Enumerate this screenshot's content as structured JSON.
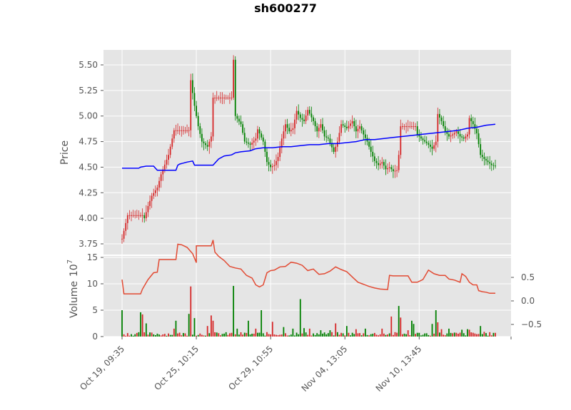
{
  "chart_data": [
    {
      "type": "candlestick",
      "title": "sh600277",
      "ylabel": "Price",
      "ylim": [
        3.7,
        5.58
      ],
      "yticks": [
        "3.75",
        "4.00",
        "4.25",
        "4.50",
        "4.75",
        "5.00",
        "5.25",
        "5.50"
      ],
      "ytick_values": [
        3.75,
        4.0,
        4.25,
        4.5,
        4.75,
        5.0,
        5.25,
        5.5
      ],
      "grid": true,
      "colors": {
        "up": "#d62728",
        "down": "#008000",
        "moving_average": "#0000ff",
        "background": "#e5e5e5",
        "grid": "#ffffff"
      },
      "price_path": [
        [
          0,
          3.8
        ],
        [
          3,
          4.03
        ],
        [
          11,
          4.03
        ],
        [
          12,
          4.0
        ],
        [
          14,
          4.12
        ],
        [
          16,
          4.22
        ],
        [
          19,
          4.3
        ],
        [
          21,
          4.43
        ],
        [
          25,
          4.62
        ],
        [
          28,
          4.86
        ],
        [
          36,
          4.86
        ],
        [
          37,
          5.35
        ],
        [
          39,
          5.1
        ],
        [
          41,
          4.9
        ],
        [
          43,
          4.75
        ],
        [
          46,
          4.7
        ],
        [
          48,
          4.8
        ],
        [
          49,
          5.18
        ],
        [
          59,
          5.18
        ],
        [
          60,
          5.55
        ],
        [
          61,
          5.0
        ],
        [
          64,
          4.92
        ],
        [
          66,
          4.75
        ],
        [
          69,
          4.72
        ],
        [
          72,
          4.78
        ],
        [
          73,
          4.87
        ],
        [
          76,
          4.75
        ],
        [
          78,
          4.55
        ],
        [
          80,
          4.5
        ],
        [
          82,
          4.52
        ],
        [
          84,
          4.6
        ],
        [
          86,
          4.78
        ],
        [
          88,
          4.92
        ],
        [
          90,
          4.85
        ],
        [
          92,
          4.88
        ],
        [
          94,
          5.05
        ],
        [
          96,
          4.98
        ],
        [
          98,
          4.95
        ],
        [
          100,
          5.06
        ],
        [
          103,
          4.95
        ],
        [
          105,
          4.85
        ],
        [
          107,
          4.92
        ],
        [
          109,
          4.8
        ],
        [
          111,
          4.78
        ],
        [
          114,
          4.65
        ],
        [
          116,
          4.75
        ],
        [
          118,
          4.92
        ],
        [
          121,
          4.88
        ],
        [
          124,
          4.95
        ],
        [
          126,
          4.85
        ],
        [
          128,
          4.9
        ],
        [
          130,
          4.82
        ],
        [
          132,
          4.75
        ],
        [
          134,
          4.65
        ],
        [
          136,
          4.56
        ],
        [
          138,
          4.52
        ],
        [
          140,
          4.55
        ],
        [
          142,
          4.48
        ],
        [
          144,
          4.5
        ],
        [
          146,
          4.46
        ],
        [
          148,
          4.47
        ],
        [
          149,
          4.62
        ],
        [
          150,
          4.9
        ],
        [
          158,
          4.9
        ],
        [
          159,
          4.82
        ],
        [
          161,
          4.78
        ],
        [
          163,
          4.75
        ],
        [
          165,
          4.72
        ],
        [
          167,
          4.68
        ],
        [
          169,
          4.75
        ],
        [
          170,
          5.02
        ],
        [
          172,
          4.95
        ],
        [
          174,
          4.85
        ],
        [
          176,
          4.8
        ],
        [
          178,
          4.82
        ],
        [
          180,
          4.85
        ],
        [
          182,
          4.8
        ],
        [
          184,
          4.78
        ],
        [
          186,
          4.82
        ],
        [
          187,
          4.98
        ],
        [
          189,
          4.92
        ],
        [
          191,
          4.83
        ],
        [
          193,
          4.62
        ],
        [
          195,
          4.58
        ],
        [
          197,
          4.55
        ],
        [
          199,
          4.52
        ],
        [
          201,
          4.51
        ]
      ],
      "moving_average": [
        [
          0,
          4.49
        ],
        [
          9,
          4.49
        ],
        [
          10,
          4.5
        ],
        [
          13,
          4.51
        ],
        [
          17,
          4.51
        ],
        [
          19,
          4.47
        ],
        [
          29,
          4.47
        ],
        [
          30,
          4.52
        ],
        [
          31,
          4.53
        ],
        [
          35,
          4.55
        ],
        [
          38,
          4.56
        ],
        [
          39,
          4.52
        ],
        [
          49,
          4.52
        ],
        [
          52,
          4.58
        ],
        [
          55,
          4.61
        ],
        [
          59,
          4.62
        ],
        [
          61,
          4.64
        ],
        [
          64,
          4.65
        ],
        [
          69,
          4.66
        ],
        [
          72,
          4.68
        ],
        [
          76,
          4.69
        ],
        [
          81,
          4.69
        ],
        [
          86,
          4.7
        ],
        [
          91,
          4.7
        ],
        [
          96,
          4.71
        ],
        [
          101,
          4.72
        ],
        [
          106,
          4.72
        ],
        [
          111,
          4.73
        ],
        [
          116,
          4.73
        ],
        [
          121,
          4.74
        ],
        [
          126,
          4.75
        ],
        [
          131,
          4.77
        ],
        [
          136,
          4.77
        ],
        [
          141,
          4.78
        ],
        [
          146,
          4.79
        ],
        [
          151,
          4.8
        ],
        [
          156,
          4.81
        ],
        [
          161,
          4.82
        ],
        [
          166,
          4.83
        ],
        [
          171,
          4.84
        ],
        [
          176,
          4.85
        ],
        [
          181,
          4.86
        ],
        [
          186,
          4.88
        ],
        [
          191,
          4.89
        ],
        [
          196,
          4.91
        ],
        [
          201,
          4.92
        ]
      ]
    },
    {
      "type": "bar",
      "ylabel": "Volume",
      "ylabel_exponent": "7",
      "ylim": [
        0,
        15
      ],
      "yticks": [
        "0",
        "5",
        "10",
        "15"
      ],
      "ytick_values": [
        0,
        5,
        10,
        15
      ],
      "secondary_yticks": [
        "0.5",
        "0.0",
        "−0.5"
      ],
      "secondary_ytick_values": [
        0.5,
        0.0,
        -0.5
      ],
      "xticks": [
        "Oct 19, 09:35",
        "Oct 25, 10:15",
        "Oct 29, 10:55",
        "Nov 04, 13:05",
        "Nov 10, 13:45"
      ],
      "xtick_positions": [
        0,
        40,
        80,
        120,
        160
      ],
      "volume_spikes": [
        [
          0,
          5.0,
          "down"
        ],
        [
          10,
          4.6,
          "down"
        ],
        [
          11,
          4.2,
          "up"
        ],
        [
          13,
          2.5,
          "down"
        ],
        [
          28,
          1.5,
          "up"
        ],
        [
          29,
          3.0,
          "down"
        ],
        [
          36,
          4.3,
          "down"
        ],
        [
          37,
          9.5,
          "up"
        ],
        [
          39,
          3.5,
          "down"
        ],
        [
          46,
          2.0,
          "up"
        ],
        [
          48,
          4.0,
          "up"
        ],
        [
          49,
          3.0,
          "up"
        ],
        [
          60,
          9.6,
          "down"
        ],
        [
          62,
          1.5,
          "down"
        ],
        [
          68,
          3.0,
          "down"
        ],
        [
          72,
          1.5,
          "up"
        ],
        [
          75,
          5.0,
          "down"
        ],
        [
          81,
          2.8,
          "up"
        ],
        [
          87,
          1.8,
          "down"
        ],
        [
          92,
          1.5,
          "down"
        ],
        [
          96,
          7.1,
          "down"
        ],
        [
          98,
          1.6,
          "down"
        ],
        [
          101,
          1.5,
          "up"
        ],
        [
          107,
          1.2,
          "down"
        ],
        [
          112,
          1.2,
          "down"
        ],
        [
          115,
          2.5,
          "up"
        ],
        [
          121,
          2.0,
          "down"
        ],
        [
          126,
          1.4,
          "up"
        ],
        [
          131,
          1.5,
          "down"
        ],
        [
          140,
          1.5,
          "up"
        ],
        [
          145,
          3.8,
          "up"
        ],
        [
          149,
          5.8,
          "down"
        ],
        [
          150,
          3.6,
          "up"
        ],
        [
          154,
          1.2,
          "up"
        ],
        [
          156,
          3.0,
          "down"
        ],
        [
          157,
          2.4,
          "down"
        ],
        [
          167,
          2.4,
          "down"
        ],
        [
          169,
          5.0,
          "down"
        ],
        [
          170,
          2.7,
          "up"
        ],
        [
          172,
          1.4,
          "up"
        ],
        [
          176,
          1.5,
          "down"
        ],
        [
          183,
          1.3,
          "down"
        ],
        [
          186,
          1.4,
          "down"
        ],
        [
          187,
          1.3,
          "up"
        ],
        [
          193,
          2.0,
          "down"
        ],
        [
          195,
          0.9,
          "up"
        ],
        [
          200,
          0.7,
          "down"
        ]
      ],
      "secondary_line": [
        [
          0,
          10.8
        ],
        [
          1,
          8.1
        ],
        [
          3,
          8.1
        ],
        [
          10,
          8.1
        ],
        [
          11,
          9.0
        ],
        [
          13,
          10.2
        ],
        [
          14,
          10.8
        ],
        [
          17,
          12.1
        ],
        [
          19,
          12.2
        ],
        [
          20,
          14.6
        ],
        [
          29,
          14.6
        ],
        [
          30,
          17.5
        ],
        [
          32,
          17.4
        ],
        [
          35,
          16.9
        ],
        [
          38,
          15.7
        ],
        [
          40,
          14.0
        ],
        [
          40,
          17.2
        ],
        [
          48,
          17.2
        ],
        [
          49,
          18.3
        ],
        [
          50,
          16.0
        ],
        [
          52,
          15.2
        ],
        [
          55,
          14.4
        ],
        [
          58,
          13.3
        ],
        [
          61,
          13.0
        ],
        [
          64,
          12.8
        ],
        [
          67,
          11.6
        ],
        [
          70,
          11.1
        ],
        [
          72,
          9.8
        ],
        [
          74,
          9.4
        ],
        [
          76,
          9.8
        ],
        [
          78,
          12.1
        ],
        [
          80,
          12.5
        ],
        [
          82,
          12.6
        ],
        [
          85,
          13.2
        ],
        [
          88,
          13.3
        ],
        [
          91,
          14.1
        ],
        [
          94,
          13.9
        ],
        [
          97,
          13.5
        ],
        [
          100,
          12.5
        ],
        [
          103,
          12.8
        ],
        [
          106,
          11.8
        ],
        [
          109,
          11.9
        ],
        [
          112,
          12.4
        ],
        [
          115,
          13.2
        ],
        [
          118,
          12.7
        ],
        [
          121,
          12.3
        ],
        [
          124,
          11.3
        ],
        [
          127,
          10.3
        ],
        [
          130,
          9.9
        ],
        [
          133,
          9.5
        ],
        [
          136,
          9.2
        ],
        [
          139,
          9.0
        ],
        [
          143,
          8.9
        ],
        [
          144,
          11.6
        ],
        [
          146,
          11.5
        ],
        [
          154,
          11.5
        ],
        [
          156,
          10.3
        ],
        [
          159,
          10.3
        ],
        [
          162,
          10.8
        ],
        [
          165,
          12.6
        ],
        [
          168,
          11.9
        ],
        [
          171,
          11.6
        ],
        [
          174,
          11.6
        ],
        [
          176,
          10.9
        ],
        [
          179,
          10.7
        ],
        [
          182,
          10.3
        ],
        [
          183,
          11.9
        ],
        [
          185,
          11.4
        ],
        [
          187,
          10.3
        ],
        [
          189,
          9.8
        ],
        [
          191,
          9.8
        ],
        [
          192,
          8.7
        ],
        [
          194,
          8.5
        ],
        [
          196,
          8.4
        ],
        [
          198,
          8.2
        ],
        [
          201,
          8.2
        ]
      ]
    }
  ]
}
